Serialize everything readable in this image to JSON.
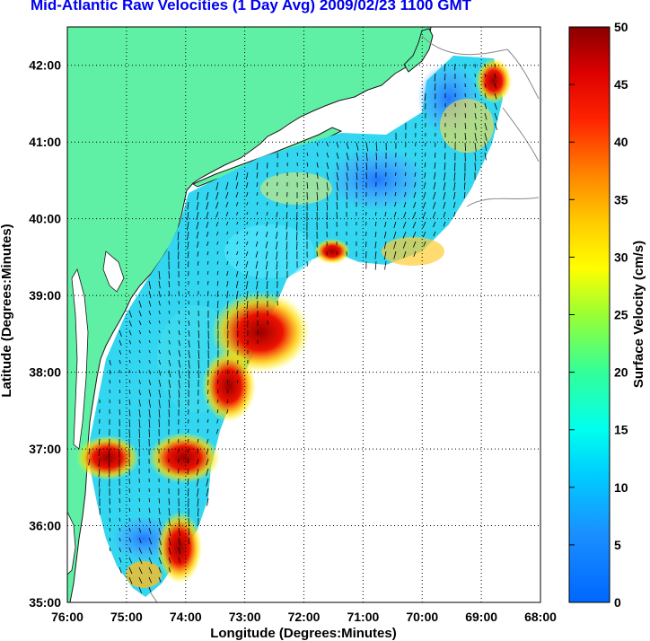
{
  "title": "Mid-Atlantic Raw Velocities (1 Day Avg) 2009/02/23 1100 GMT",
  "chart_data": {
    "type": "heatmap",
    "xlabel": "Longitude (Degrees:Minutes)",
    "ylabel": "Latitude (Degrees:Minutes)",
    "x_ticks": [
      "76:00",
      "75:00",
      "74:00",
      "73:00",
      "72:00",
      "71:00",
      "70:00",
      "69:00",
      "68:00"
    ],
    "y_ticks": [
      "42:00",
      "41:00",
      "40:00",
      "39:00",
      "38:00",
      "37:00",
      "36:00",
      "35:00"
    ],
    "xlim": [
      -76,
      -68
    ],
    "ylim": [
      35,
      42.5
    ],
    "colorbar": {
      "label": "Surface Velocity (cm/s)",
      "ticks": [
        "50",
        "45",
        "40",
        "35",
        "30",
        "25",
        "20",
        "15",
        "10",
        "5",
        "0"
      ],
      "range": [
        0,
        50
      ]
    },
    "grid": true,
    "colors": {
      "land": "#5ff0a5",
      "title": "#0000ee",
      "coast": "#1a1a1a",
      "grid": "#000000"
    }
  }
}
